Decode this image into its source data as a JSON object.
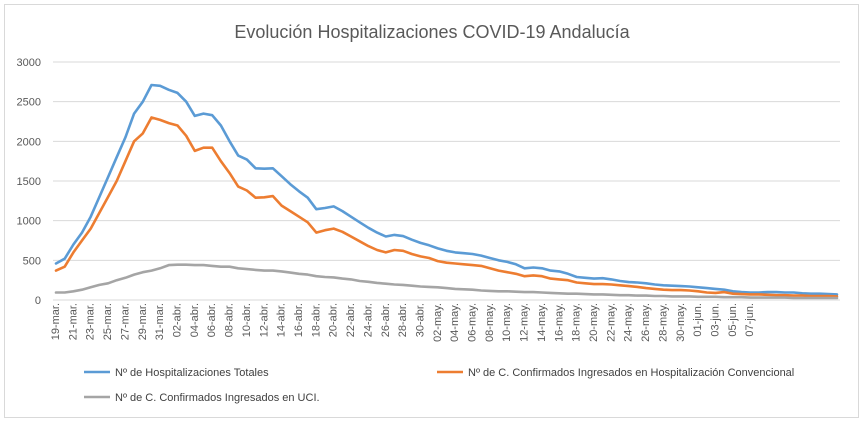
{
  "chart_data": {
    "type": "line",
    "title": "Evolución Hospitalizaciones COVID-19 Andalucía",
    "xlabel": "",
    "ylabel": "",
    "ylim": [
      0,
      3000
    ],
    "y_ticks": [
      0,
      500,
      1000,
      1500,
      2000,
      2500,
      3000
    ],
    "grid": "horizontal",
    "legend": "bottom",
    "x_tick_labels": [
      "19-mar.",
      "21-mar.",
      "23-mar.",
      "25-mar.",
      "27-mar.",
      "29-mar.",
      "31-mar.",
      "02-abr.",
      "04-abr.",
      "06-abr.",
      "08-abr.",
      "10-abr.",
      "12-abr.",
      "14-abr.",
      "16-abr.",
      "18-abr.",
      "20-abr.",
      "22-abr.",
      "24-abr.",
      "26-abr.",
      "28-abr.",
      "30-abr.",
      "02-may.",
      "04-may.",
      "06-may.",
      "08-may.",
      "10-may.",
      "12-may.",
      "14-may.",
      "16-may.",
      "18-may.",
      "20-may.",
      "22-may.",
      "24-may.",
      "26-may.",
      "28-may.",
      "30-may.",
      "01-jun.",
      "03-jun.",
      "05-jun.",
      "07-jun."
    ],
    "x_start": "2020-03-19",
    "series": [
      {
        "name": "Nº de Hospitalizaciones Totales",
        "color": "#5b9bd5",
        "values": [
          460,
          520,
          700,
          850,
          1050,
          1300,
          1550,
          1800,
          2050,
          2350,
          2500,
          2710,
          2700,
          2650,
          2610,
          2500,
          2320,
          2350,
          2330,
          2200,
          2000,
          1820,
          1770,
          1660,
          1655,
          1660,
          1560,
          1460,
          1370,
          1290,
          1145,
          1160,
          1180,
          1120,
          1050,
          980,
          910,
          850,
          800,
          820,
          805,
          760,
          720,
          690,
          650,
          620,
          600,
          590,
          580,
          560,
          530,
          500,
          480,
          450,
          400,
          410,
          400,
          370,
          360,
          330,
          290,
          280,
          270,
          275,
          260,
          240,
          225,
          220,
          210,
          195,
          185,
          180,
          175,
          170,
          160,
          150,
          140,
          130,
          110,
          100,
          95,
          95,
          100,
          100,
          95,
          95,
          85,
          80,
          80,
          75,
          70
        ]
      },
      {
        "name": "Nº de C. Confirmados Ingresados en Hospitalización Convencional",
        "color": "#ed7d31",
        "values": [
          370,
          420,
          600,
          750,
          900,
          1100,
          1300,
          1500,
          1750,
          2000,
          2100,
          2300,
          2270,
          2230,
          2200,
          2070,
          1880,
          1920,
          1920,
          1750,
          1600,
          1430,
          1380,
          1290,
          1295,
          1310,
          1190,
          1120,
          1050,
          980,
          850,
          880,
          900,
          860,
          800,
          740,
          680,
          630,
          600,
          630,
          620,
          580,
          550,
          530,
          490,
          470,
          460,
          450,
          440,
          430,
          400,
          370,
          350,
          330,
          300,
          310,
          300,
          270,
          260,
          250,
          220,
          210,
          200,
          200,
          195,
          185,
          175,
          165,
          150,
          140,
          130,
          125,
          125,
          120,
          110,
          95,
          90,
          100,
          80,
          75,
          70,
          70,
          65,
          60,
          60,
          55,
          55,
          50,
          50,
          50,
          45
        ]
      },
      {
        "name": "Nº de C. Confirmados Ingresados en UCI.",
        "color": "#a5a5a5",
        "values": [
          95,
          95,
          110,
          130,
          160,
          190,
          210,
          250,
          280,
          320,
          350,
          370,
          400,
          440,
          445,
          445,
          440,
          440,
          430,
          420,
          420,
          400,
          390,
          380,
          370,
          370,
          360,
          345,
          330,
          320,
          300,
          290,
          285,
          270,
          260,
          240,
          230,
          215,
          205,
          195,
          190,
          180,
          170,
          165,
          160,
          150,
          140,
          135,
          130,
          120,
          115,
          110,
          110,
          105,
          100,
          100,
          95,
          90,
          85,
          80,
          80,
          75,
          70,
          70,
          65,
          60,
          60,
          55,
          55,
          50,
          50,
          45,
          45,
          45,
          40,
          40,
          40,
          35,
          35,
          35,
          30,
          30,
          30,
          30,
          30,
          25,
          25,
          25,
          25,
          25,
          25
        ]
      }
    ]
  }
}
